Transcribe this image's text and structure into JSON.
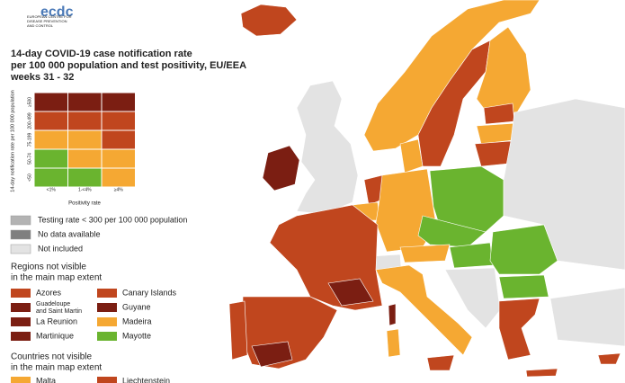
{
  "header": {
    "logo": "ecdc",
    "logo_subtitle": [
      "EUROPEAN CENTRE FOR",
      "DISEASE PREVENTION",
      "AND CONTROL"
    ],
    "title": [
      "14-day COVID-19 case notification rate",
      "per 100 000 population and test positivity, EU/EEA",
      "weeks 31 - 32"
    ]
  },
  "matrix": {
    "y_label": "14-day notification rate per 100 000 population",
    "x_label": "Positivity rate",
    "rows": [
      "≥500",
      "200-499",
      "75-199",
      "50-74",
      "<50"
    ],
    "columns": [
      "<1%",
      "1-<4%",
      "≥4%"
    ],
    "cells": [
      [
        "#7b1e12",
        "#7b1e12",
        "#7b1e12"
      ],
      [
        "#c0461e",
        "#c0461e",
        "#c0461e"
      ],
      [
        "#f5a833",
        "#f5a833",
        "#c0461e"
      ],
      [
        "#6ab42f",
        "#f5a833",
        "#f5a833"
      ],
      [
        "#6ab42f",
        "#6ab42f",
        "#f5a833"
      ]
    ]
  },
  "legend": {
    "status": [
      {
        "name": "Testing rate < 300 per 100 000 population",
        "color": "#b3b3b3"
      },
      {
        "name": "No data available",
        "color": "#7f7f7f"
      },
      {
        "name": "Not included",
        "color": "#e3e3e3"
      }
    ],
    "regions_title": [
      "Regions not visible",
      "in the main map extent"
    ],
    "regions": [
      {
        "name": [
          "Azores"
        ],
        "color": "#c0461e"
      },
      {
        "name": [
          "Canary Islands"
        ],
        "color": "#c0461e"
      },
      {
        "name": [
          "Guadeloupe",
          "and Saint Martin"
        ],
        "color": "#7b1e12"
      },
      {
        "name": [
          "Guyane"
        ],
        "color": "#7b1e12"
      },
      {
        "name": [
          "La Reunion"
        ],
        "color": "#7b1e12"
      },
      {
        "name": [
          "Madeira"
        ],
        "color": "#f5a833"
      },
      {
        "name": [
          "Martinique"
        ],
        "color": "#7b1e12"
      },
      {
        "name": [
          "Mayotte"
        ],
        "color": "#6ab42f"
      }
    ],
    "countries_title": [
      "Countries not visible",
      "in the main map extent"
    ],
    "countries": [
      {
        "name": [
          "Malta"
        ],
        "color": "#f5a833"
      },
      {
        "name": [
          "Liechtenstein"
        ],
        "color": "#c0461e"
      }
    ]
  }
}
